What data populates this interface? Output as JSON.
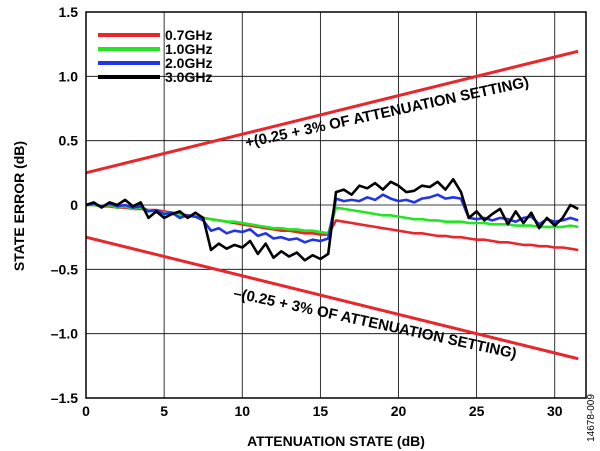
{
  "chart_data": {
    "type": "line",
    "xlabel": "ATTENUATION STATE (dB)",
    "ylabel": "STATE  ERROR (dB)",
    "xlim": [
      0,
      32
    ],
    "ylim": [
      -1.5,
      1.5
    ],
    "xticks": [
      0,
      5,
      10,
      15,
      20,
      25,
      30
    ],
    "yticks": [
      -1.5,
      -1.0,
      -0.5,
      0,
      0.5,
      1.0,
      1.5
    ],
    "xtick_labels": [
      "0",
      "5",
      "10",
      "15",
      "20",
      "25",
      "30"
    ],
    "ytick_labels": [
      "–1.5",
      "–1.0",
      "–0.5",
      "0",
      "0.5",
      "1.0",
      "1.5"
    ],
    "grid": true,
    "legend_position": "top-left",
    "x": [
      0,
      0.5,
      1,
      1.5,
      2,
      2.5,
      3,
      3.5,
      4,
      4.5,
      5,
      5.5,
      6,
      6.5,
      7,
      7.5,
      8,
      8.5,
      9,
      9.5,
      10,
      10.5,
      11,
      11.5,
      12,
      12.5,
      13,
      13.5,
      14,
      14.5,
      15,
      15.5,
      16,
      16.5,
      17,
      17.5,
      18,
      18.5,
      19,
      19.5,
      20,
      20.5,
      21,
      21.5,
      22,
      22.5,
      23,
      23.5,
      24,
      24.5,
      25,
      25.5,
      26,
      26.5,
      27,
      27.5,
      28,
      28.5,
      29,
      29.5,
      30,
      30.5,
      31,
      31.5
    ],
    "series": [
      {
        "name": "0.7GHz",
        "color": "#e8262b",
        "values": [
          0,
          0,
          -0.01,
          -0.01,
          -0.02,
          -0.02,
          -0.03,
          -0.03,
          -0.04,
          -0.04,
          -0.05,
          -0.06,
          -0.07,
          -0.08,
          -0.09,
          -0.1,
          -0.11,
          -0.12,
          -0.13,
          -0.14,
          -0.15,
          -0.16,
          -0.17,
          -0.18,
          -0.19,
          -0.2,
          -0.2,
          -0.21,
          -0.22,
          -0.22,
          -0.23,
          -0.23,
          -0.12,
          -0.13,
          -0.14,
          -0.15,
          -0.16,
          -0.17,
          -0.18,
          -0.19,
          -0.2,
          -0.21,
          -0.22,
          -0.22,
          -0.23,
          -0.24,
          -0.24,
          -0.25,
          -0.25,
          -0.26,
          -0.27,
          -0.27,
          -0.28,
          -0.29,
          -0.29,
          -0.3,
          -0.31,
          -0.31,
          -0.32,
          -0.32,
          -0.33,
          -0.33,
          -0.34,
          -0.35
        ]
      },
      {
        "name": "1.0GHz",
        "color": "#22e622",
        "values": [
          0,
          0,
          -0.01,
          0,
          -0.02,
          -0.01,
          -0.03,
          -0.02,
          -0.04,
          -0.05,
          -0.06,
          -0.07,
          -0.08,
          -0.09,
          -0.09,
          -0.1,
          -0.11,
          -0.12,
          -0.13,
          -0.13,
          -0.14,
          -0.15,
          -0.16,
          -0.17,
          -0.18,
          -0.18,
          -0.19,
          -0.19,
          -0.2,
          -0.2,
          -0.21,
          -0.22,
          -0.02,
          -0.03,
          -0.04,
          -0.05,
          -0.06,
          -0.07,
          -0.08,
          -0.08,
          -0.09,
          -0.1,
          -0.11,
          -0.11,
          -0.12,
          -0.12,
          -0.13,
          -0.13,
          -0.13,
          -0.14,
          -0.14,
          -0.14,
          -0.15,
          -0.15,
          -0.15,
          -0.16,
          -0.16,
          -0.16,
          -0.17,
          -0.17,
          -0.17,
          -0.17,
          -0.16,
          -0.17
        ]
      },
      {
        "name": "2.0GHz",
        "color": "#2235e6",
        "values": [
          0,
          0.01,
          -0.01,
          0.01,
          -0.01,
          0,
          -0.02,
          -0.01,
          -0.05,
          -0.04,
          -0.07,
          -0.06,
          -0.1,
          -0.08,
          -0.09,
          -0.12,
          -0.2,
          -0.18,
          -0.22,
          -0.2,
          -0.21,
          -0.19,
          -0.24,
          -0.22,
          -0.26,
          -0.25,
          -0.27,
          -0.26,
          -0.29,
          -0.27,
          -0.28,
          -0.26,
          0.05,
          0.03,
          0.04,
          0.03,
          0.06,
          0.04,
          0.08,
          0.05,
          0.03,
          0.04,
          0.02,
          0.05,
          0.06,
          0.08,
          0.05,
          0.06,
          0.05,
          -0.1,
          -0.11,
          -0.1,
          -0.12,
          -0.1,
          -0.11,
          -0.13,
          -0.1,
          -0.09,
          -0.15,
          -0.11,
          -0.13,
          -0.12,
          -0.1,
          -0.12
        ]
      },
      {
        "name": "3.0GHz",
        "color": "#000000",
        "values": [
          0,
          0.02,
          -0.02,
          0.02,
          0,
          0.04,
          -0.01,
          0.02,
          -0.1,
          -0.05,
          -0.1,
          -0.07,
          -0.05,
          -0.1,
          -0.06,
          -0.1,
          -0.35,
          -0.3,
          -0.34,
          -0.31,
          -0.33,
          -0.28,
          -0.38,
          -0.3,
          -0.41,
          -0.36,
          -0.4,
          -0.37,
          -0.43,
          -0.39,
          -0.42,
          -0.38,
          0.1,
          0.12,
          0.08,
          0.15,
          0.13,
          0.17,
          0.12,
          0.18,
          0.15,
          0.1,
          0.11,
          0.15,
          0.14,
          0.18,
          0.12,
          0.2,
          0.1,
          -0.1,
          -0.05,
          -0.12,
          -0.07,
          -0.03,
          -0.15,
          -0.05,
          -0.14,
          -0.06,
          -0.18,
          -0.1,
          -0.16,
          -0.1,
          0,
          -0.03
        ]
      }
    ],
    "bounds": [
      {
        "label": "+(0.25 + 3% OF ATTENUATION SETTING)",
        "color": "#e8262b",
        "x": [
          0,
          31.5
        ],
        "y": [
          0.25,
          1.195
        ]
      },
      {
        "label": "–(0.25 + 3% OF ATTENUATION SETTING)",
        "color": "#e8262b",
        "x": [
          0,
          31.5
        ],
        "y": [
          -0.25,
          -1.195
        ]
      }
    ]
  },
  "figure_id": "14678-009"
}
